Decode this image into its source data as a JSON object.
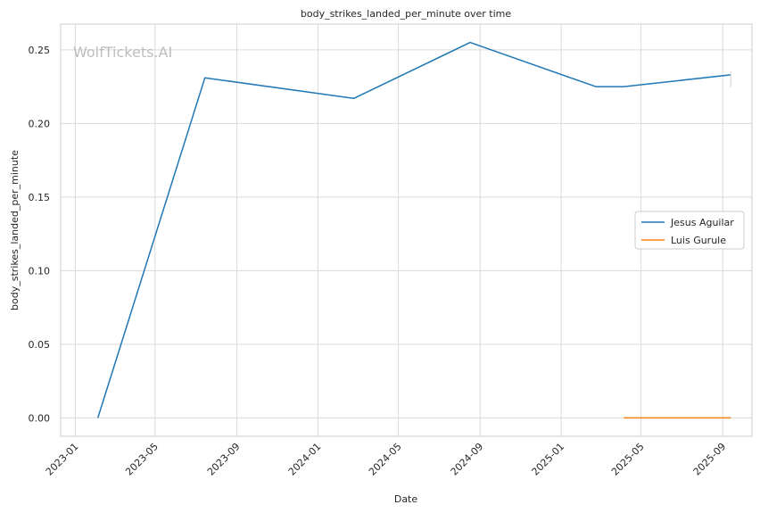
{
  "chart_data": {
    "type": "line",
    "title": "body_strikes_landed_per_minute over time",
    "xlabel": "Date",
    "ylabel": "body_strikes_landed_per_minute",
    "watermark": "WolfTickets.AI",
    "x_ticks": [
      "2023-01",
      "2023-05",
      "2023-09",
      "2024-01",
      "2024-05",
      "2024-09",
      "2025-01",
      "2025-05",
      "2025-09"
    ],
    "y_ticks": [
      "0.00",
      "0.05",
      "0.10",
      "0.15",
      "0.20",
      "0.25"
    ],
    "xlim": [
      "2022-12-10",
      "2025-10-15"
    ],
    "ylim": [
      -0.0125,
      0.2675
    ],
    "grid": true,
    "legend_position": "center-right",
    "series": [
      {
        "name": "Jesus Aguilar",
        "color": "#1f77b4",
        "points": [
          {
            "x": "2023-02-04",
            "y": 0.0
          },
          {
            "x": "2023-07-15",
            "y": 0.231
          },
          {
            "x": "2024-02-24",
            "y": 0.217
          },
          {
            "x": "2024-08-17",
            "y": 0.255
          },
          {
            "x": "2025-02-22",
            "y": 0.225
          },
          {
            "x": "2025-04-05",
            "y": 0.225
          },
          {
            "x": "2025-09-13",
            "y": 0.233
          }
        ]
      },
      {
        "name": "Luis Gurule",
        "color": "#ff7f0e",
        "points": [
          {
            "x": "2025-04-05",
            "y": 0.0
          },
          {
            "x": "2025-09-13",
            "y": 0.0
          }
        ]
      }
    ]
  }
}
